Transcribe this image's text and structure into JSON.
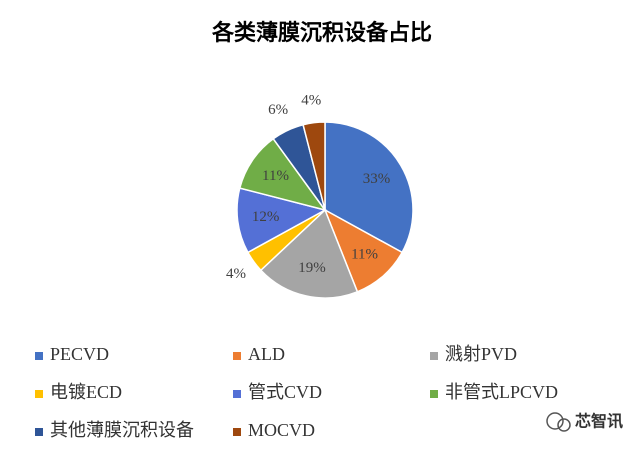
{
  "chart_data": {
    "type": "pie",
    "title": "各类薄膜沉积设备占比",
    "categories": [
      "PECVD",
      "ALD",
      "溅射PVD",
      "电镀ECD",
      "管式CVD",
      "非管式LPCVD",
      "其他薄膜沉积设备",
      "MOCVD"
    ],
    "values": [
      33,
      11,
      19,
      4,
      12,
      11,
      6,
      4
    ],
    "value_labels": [
      "33%",
      "11%",
      "19%",
      "4%",
      "12%",
      "11%",
      "6%",
      "4%"
    ],
    "colors": [
      "#4472c4",
      "#ed7d31",
      "#a5a5a5",
      "#ffc000",
      "#5470d6",
      "#70ad47",
      "#2f5597",
      "#9e480e"
    ],
    "legend": "bottom"
  },
  "watermark": "芯智讯"
}
